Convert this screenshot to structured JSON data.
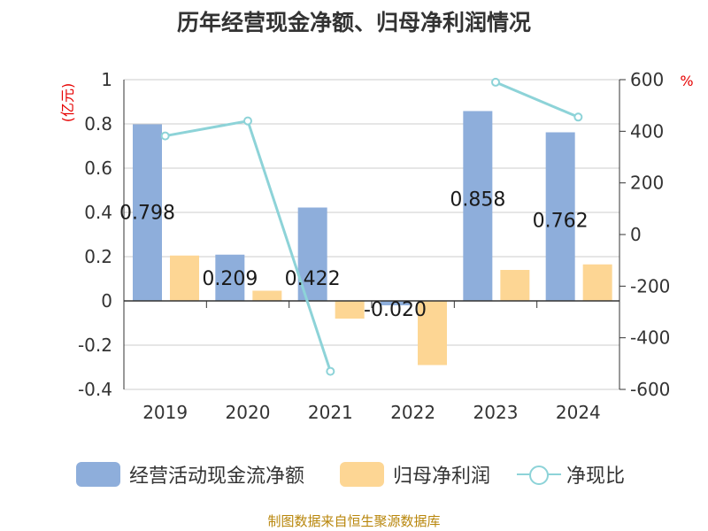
{
  "title": "历年经营现金净额、归母净利润情况",
  "source": "制图数据来自恒生聚源数据库",
  "chart_data": {
    "type": "bar",
    "categories": [
      "2019",
      "2020",
      "2021",
      "2022",
      "2023",
      "2024"
    ],
    "series": [
      {
        "name": "经营活动现金流净额",
        "axis": "left",
        "color": "#8eaedb",
        "values": [
          0.798,
          0.209,
          0.422,
          -0.02,
          0.858,
          0.762
        ],
        "labels": [
          "0.798",
          "0.209",
          "0.422",
          "-0.020",
          "0.858",
          "0.762"
        ]
      },
      {
        "name": "归母净利润",
        "axis": "left",
        "color": "#fdd694",
        "values": [
          0.205,
          0.046,
          -0.08,
          -0.29,
          0.14,
          0.165
        ]
      },
      {
        "name": "净现比",
        "type": "line",
        "axis": "right",
        "color": "#8dd3d8",
        "values": [
          382,
          440,
          -530,
          null,
          590,
          455
        ]
      }
    ],
    "left_axis": {
      "unit": "(亿元)",
      "ylim": [
        -0.4,
        1
      ],
      "ticks": [
        "1",
        "0.8",
        "0.6",
        "0.4",
        "0.2",
        "0",
        "-0.2",
        "-0.4"
      ]
    },
    "right_axis": {
      "unit": "%",
      "ylim": [
        -600,
        600
      ],
      "ticks": [
        "600",
        "400",
        "200",
        "0",
        "-200",
        "-400",
        "-600"
      ]
    },
    "grid": true,
    "legend": "bottom"
  }
}
